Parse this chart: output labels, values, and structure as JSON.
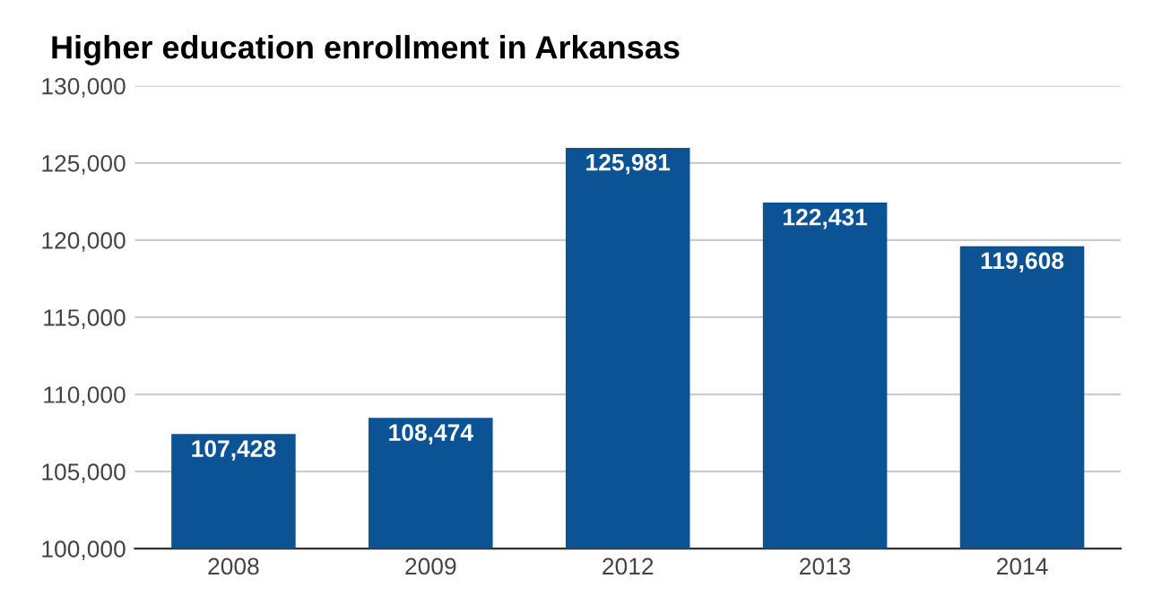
{
  "chart_data": {
    "type": "bar",
    "title": "Higher education enrollment in Arkansas",
    "categories": [
      "2008",
      "2009",
      "2012",
      "2013",
      "2014"
    ],
    "values": [
      107428,
      108474,
      125981,
      122431,
      119608
    ],
    "color": "#0b5394",
    "ylim": [
      100000,
      130000
    ],
    "yticks": [
      {
        "value": 100000,
        "label": "100,000"
      },
      {
        "value": 105000,
        "label": "105,000"
      },
      {
        "value": 110000,
        "label": "110,000"
      },
      {
        "value": 115000,
        "label": "115,000"
      },
      {
        "value": 120000,
        "label": "120,000"
      },
      {
        "value": 125000,
        "label": "125,000"
      },
      {
        "value": 130000,
        "label": "130,000"
      }
    ],
    "value_labels": [
      "107,428",
      "108,474",
      "125,981",
      "122,431",
      "119,608"
    ],
    "grid": "y",
    "legend": false
  }
}
